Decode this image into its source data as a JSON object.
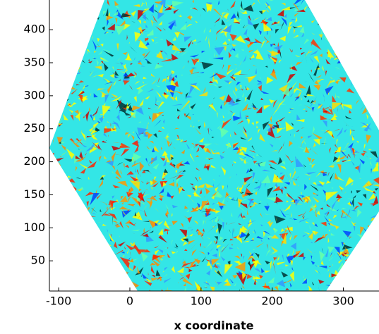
{
  "chart_data": {
    "type": "heatmap",
    "xlabel": "x coordinate",
    "xlim": [
      -113,
      350
    ],
    "xticks": [
      -100,
      0,
      100,
      200,
      300
    ],
    "ylim": [
      0,
      445
    ],
    "yticks": [
      50,
      100,
      150,
      200,
      250,
      300,
      350,
      400
    ]
  }
}
